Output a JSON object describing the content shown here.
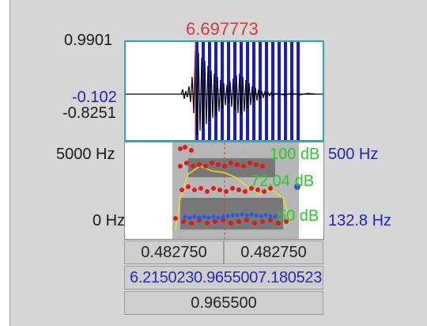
{
  "cursor_time": "6.697773",
  "waveform": {
    "y_max": "0.9901",
    "y_cursor": "-0.102",
    "y_min": "-0.8251"
  },
  "spectrogram": {
    "freq_top": "5000 Hz",
    "freq_bottom": "0 Hz",
    "db_top": "100 dB",
    "db_cursor": "72.04 dB",
    "db_bottom": "50 dB",
    "pitch_top": "500 Hz",
    "pitch_cursor": "132.8 Hz"
  },
  "selection": {
    "left_duration": "0.482750",
    "right_duration": "0.482750",
    "start_time": "6.215023",
    "mid_duration": "0.965500",
    "end_time": "7.180523",
    "total_duration": "0.965500"
  },
  "colors": {
    "cursor_red": "#d23a3a",
    "selection_blue": "#1a1ad0",
    "intensity_yellow": "#e5e21e",
    "formant_red": "#e01a1a",
    "pitch_blue": "#1f5bf0",
    "db_green": "#27cc27"
  }
}
